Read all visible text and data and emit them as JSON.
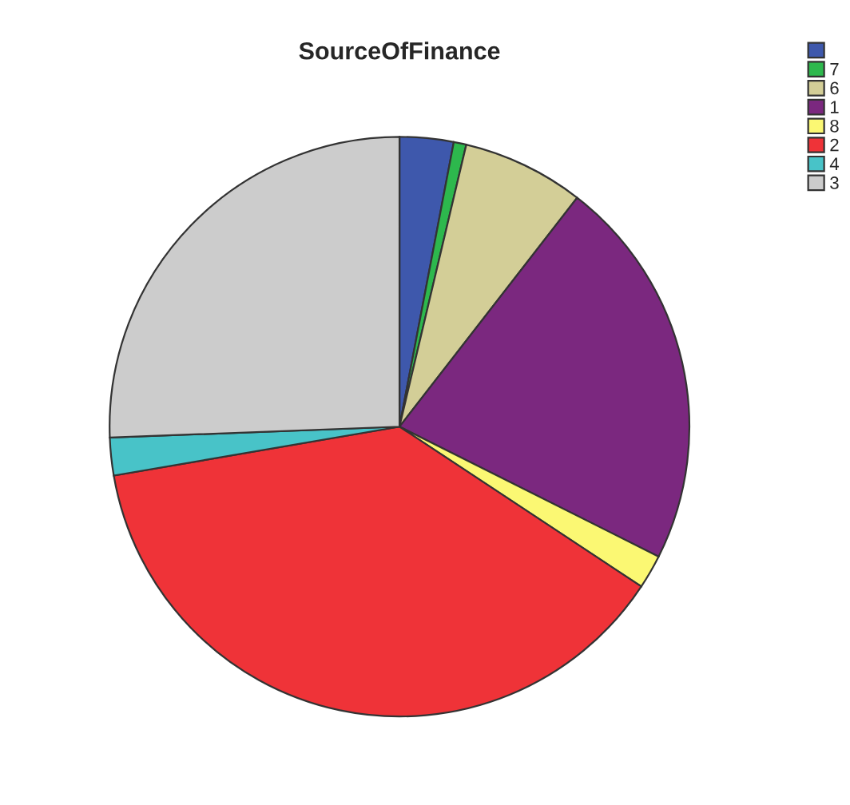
{
  "chart_data": {
    "type": "pie",
    "title": "SourceOfFinance",
    "categories": [
      null,
      "7",
      "6",
      "1",
      "8",
      "2",
      "4",
      "3"
    ],
    "values": [
      3.0,
      0.7,
      6.8,
      21.9,
      1.9,
      38.0,
      2.1,
      25.6
    ],
    "colors": [
      "#3e58ac",
      "#2db84d",
      "#d3ce97",
      "#7b287f",
      "#fbf873",
      "#ef3338",
      "#48c3c8",
      "#cccccc"
    ],
    "legend": "top right"
  }
}
